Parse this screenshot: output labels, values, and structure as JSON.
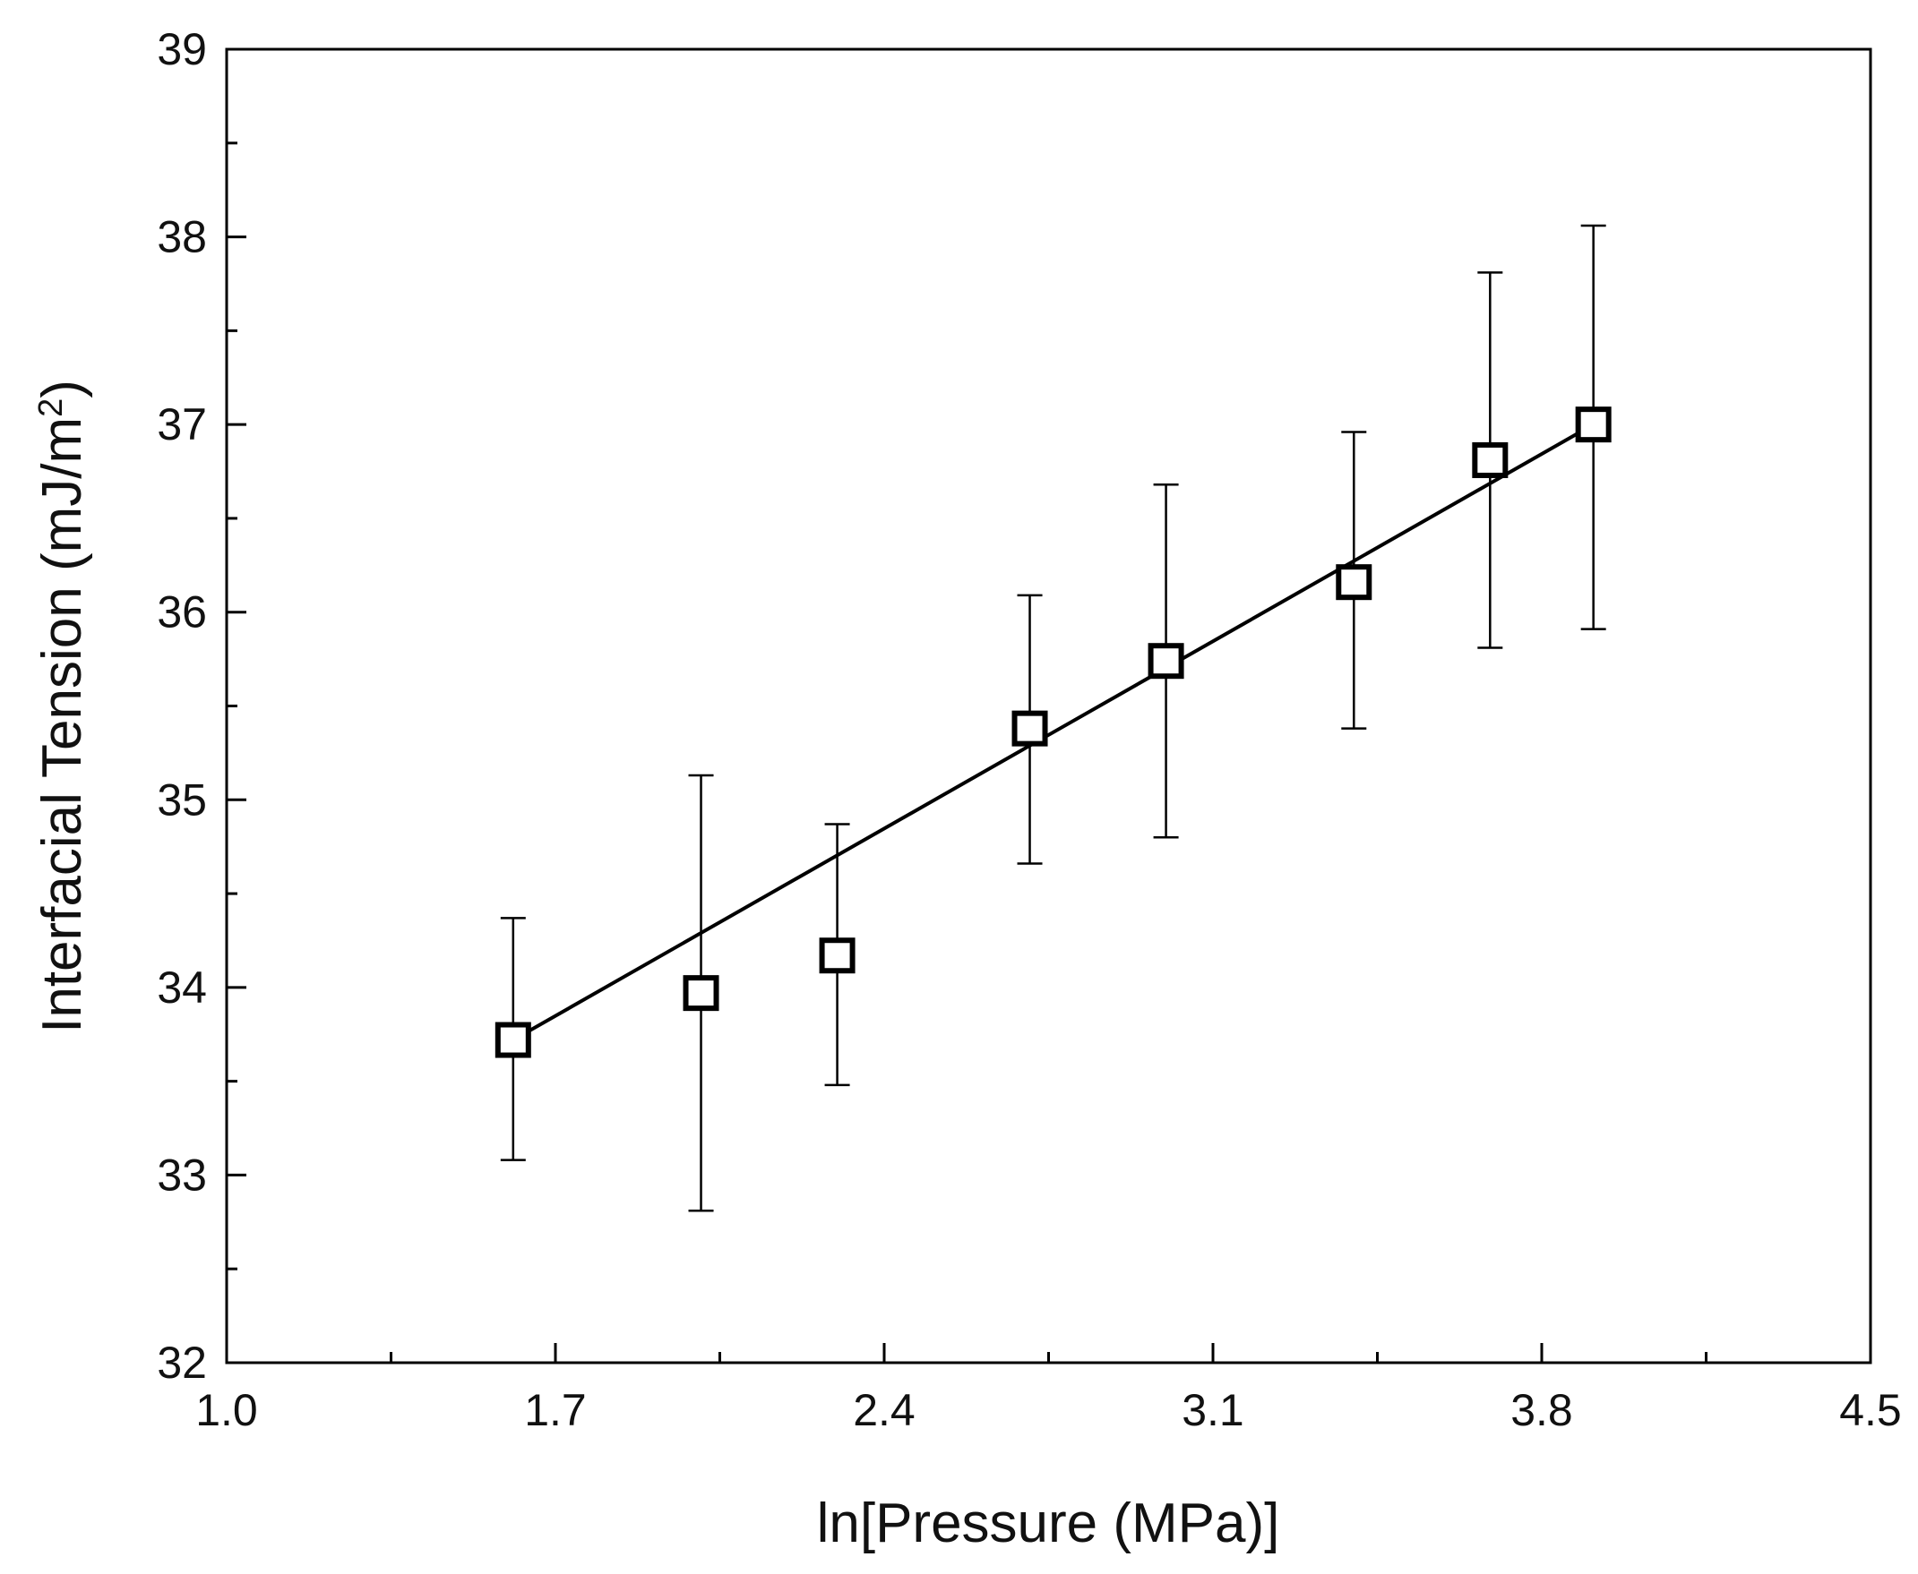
{
  "chart_data": {
    "type": "scatter",
    "title": "",
    "xlabel": "ln[Pressure (MPa)]",
    "ylabel_main": "Interfacial Tension (mJ/m",
    "ylabel_sup": "2",
    "ylabel_end": ")",
    "xlim": [
      1.0,
      4.5
    ],
    "ylim": [
      32,
      39
    ],
    "x_ticks": [
      1.0,
      1.7,
      2.4,
      3.1,
      3.8,
      4.5
    ],
    "x_tick_labels": [
      "1.0",
      "1.7",
      "2.4",
      "3.1",
      "3.8",
      "4.5"
    ],
    "x_minor_ticks": [
      1.35,
      2.05,
      2.75,
      3.45,
      4.15
    ],
    "y_ticks": [
      32,
      33,
      34,
      35,
      36,
      37,
      38,
      39
    ],
    "y_tick_labels": [
      "32",
      "33",
      "34",
      "35",
      "36",
      "37",
      "38",
      "39"
    ],
    "y_minor_ticks": [
      32.5,
      33.5,
      34.5,
      35.5,
      36.5,
      37.5,
      38.5
    ],
    "grid": false,
    "series": [
      {
        "name": "Interfacial Tension",
        "marker": "open-square",
        "points": [
          {
            "x": 1.61,
            "y": 33.72,
            "err_low": 33.08,
            "err_high": 34.37
          },
          {
            "x": 2.01,
            "y": 33.97,
            "err_low": 32.81,
            "err_high": 35.13
          },
          {
            "x": 2.3,
            "y": 34.17,
            "err_low": 33.48,
            "err_high": 34.87
          },
          {
            "x": 2.71,
            "y": 35.38,
            "err_low": 34.66,
            "err_high": 36.09
          },
          {
            "x": 3.0,
            "y": 35.74,
            "err_low": 34.8,
            "err_high": 36.68
          },
          {
            "x": 3.4,
            "y": 36.16,
            "err_low": 35.38,
            "err_high": 36.96
          },
          {
            "x": 3.69,
            "y": 36.81,
            "err_low": 35.81,
            "err_high": 37.81
          },
          {
            "x": 3.91,
            "y": 37.0,
            "err_low": 35.91,
            "err_high": 38.06
          }
        ]
      }
    ],
    "fit_line": {
      "x0": 1.61,
      "y0": 33.72,
      "x1": 3.91,
      "y1": 37.0
    }
  }
}
